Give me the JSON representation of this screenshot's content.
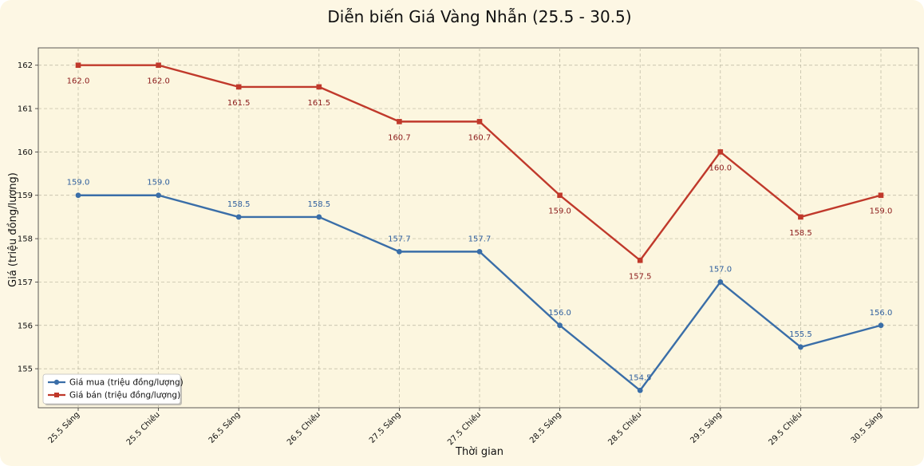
{
  "chart_data": {
    "type": "line",
    "title": "Diễn biến Giá Vàng Nhẫn (25.5 - 30.5)",
    "xlabel": "Thời gian",
    "ylabel": "Giá (triệu đồng/lượng)",
    "categories": [
      "25.5 Sáng",
      "25.5 Chiều",
      "26.5 Sáng",
      "26.5 Chiều",
      "27.5 Sáng",
      "27.5 Chiều",
      "28.5 Sáng",
      "28.5 Chiều",
      "29.5 Sáng",
      "29.5 Chiều",
      "30.5 Sáng"
    ],
    "ylim": [
      154.1,
      162.4
    ],
    "yticks": [
      155,
      156,
      157,
      158,
      159,
      160,
      161,
      162
    ],
    "grid": true,
    "legend_position": "bottom-left",
    "series": [
      {
        "name": "Giá mua (triệu đồng/lượng)",
        "color": "#3a6ea8",
        "marker": "circle",
        "values": [
          159.0,
          159.0,
          158.5,
          158.5,
          157.7,
          157.7,
          156.0,
          154.5,
          157.0,
          155.5,
          156.0
        ],
        "labels": [
          "159.0",
          "159.0",
          "158.5",
          "158.5",
          "157.7",
          "157.7",
          "156.0",
          "154.5",
          "157.0",
          "155.5",
          "156.0"
        ]
      },
      {
        "name": "Giá bán (triệu đồng/lượng)",
        "color": "#c0392b",
        "marker": "square",
        "values": [
          162.0,
          162.0,
          161.5,
          161.5,
          160.7,
          160.7,
          159.0,
          157.5,
          160.0,
          158.5,
          159.0
        ],
        "labels": [
          "162.0",
          "162.0",
          "161.5",
          "161.5",
          "160.7",
          "160.7",
          "159.0",
          "157.5",
          "160.0",
          "158.5",
          "159.0"
        ]
      }
    ]
  }
}
